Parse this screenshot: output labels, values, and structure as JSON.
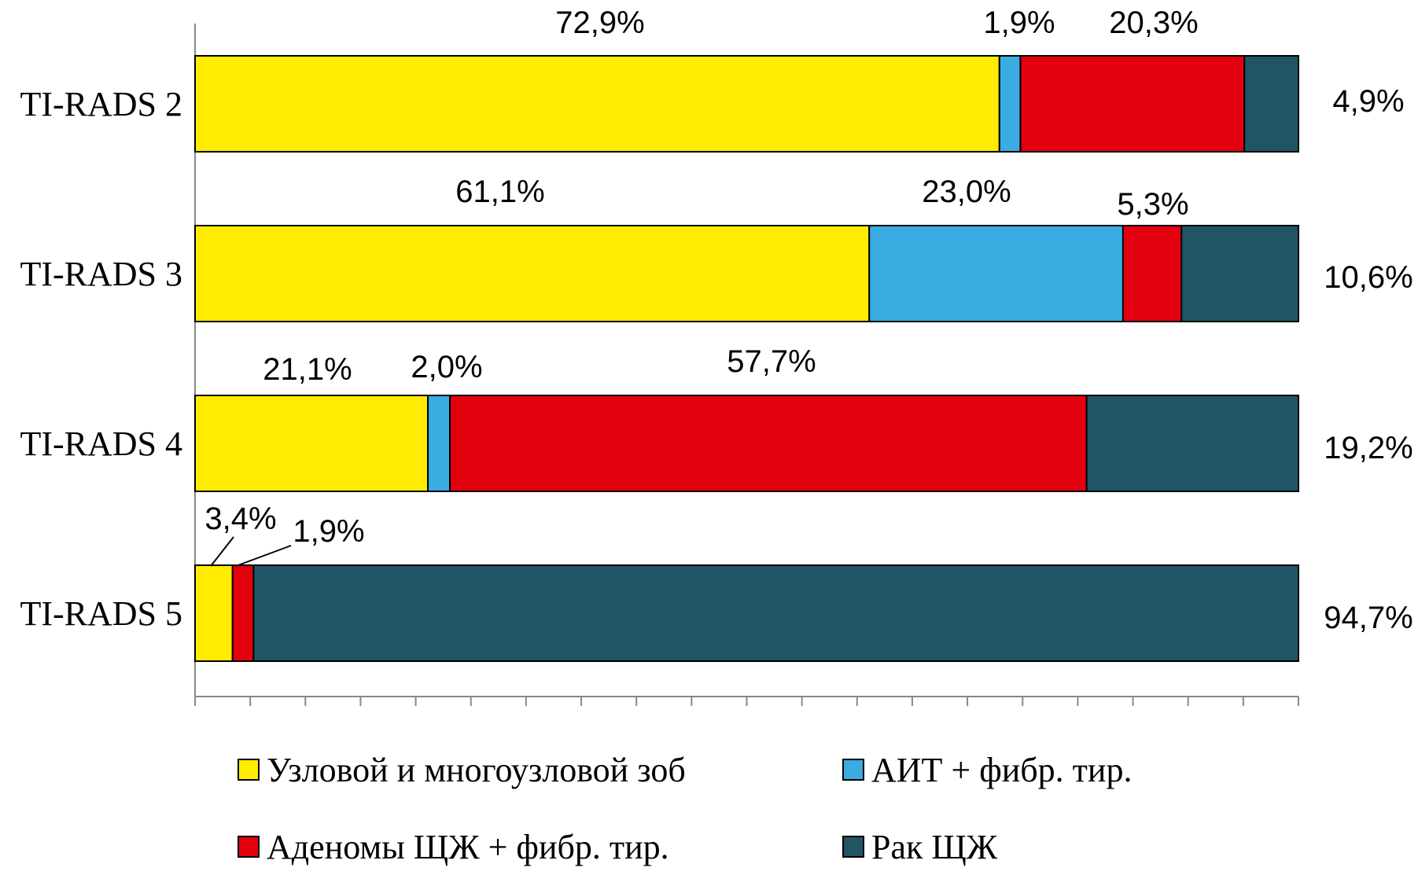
{
  "chart_data": {
    "type": "bar",
    "orientation": "horizontal",
    "stacked": true,
    "normalized_percent": true,
    "categories": [
      "TI-RADS 2",
      "TI-RADS 3",
      "TI-RADS 4",
      "TI-RADS 5"
    ],
    "series": [
      {
        "name": "Узловой и многоузловой зоб",
        "color": "#FFEC00",
        "values": [
          72.9,
          61.1,
          21.1,
          3.4
        ],
        "labels": [
          "72,9%",
          "61,1%",
          "21,1%",
          "3,4%"
        ]
      },
      {
        "name": "АИТ + фибр. тир.",
        "color": "#3AACE1",
        "values": [
          1.9,
          23.0,
          2.0,
          0
        ],
        "labels": [
          "1,9%",
          "23,0%",
          "2,0%",
          ""
        ]
      },
      {
        "name": "Аденомы ЩЖ + фибр. тир.",
        "color": "#E3000F",
        "values": [
          20.3,
          5.3,
          57.7,
          1.9
        ],
        "labels": [
          "20,3%",
          "5,3%",
          "57,7%",
          "1,9%"
        ]
      },
      {
        "name": "Рак ЩЖ",
        "color": "#205566",
        "values": [
          4.9,
          10.6,
          19.2,
          94.7
        ],
        "labels": [
          "4,9%",
          "10,6%",
          "19,2%",
          "94,7%"
        ]
      }
    ],
    "xlim": [
      0,
      100
    ],
    "x_ticks": 20,
    "grid": false,
    "legend_position": "bottom"
  }
}
